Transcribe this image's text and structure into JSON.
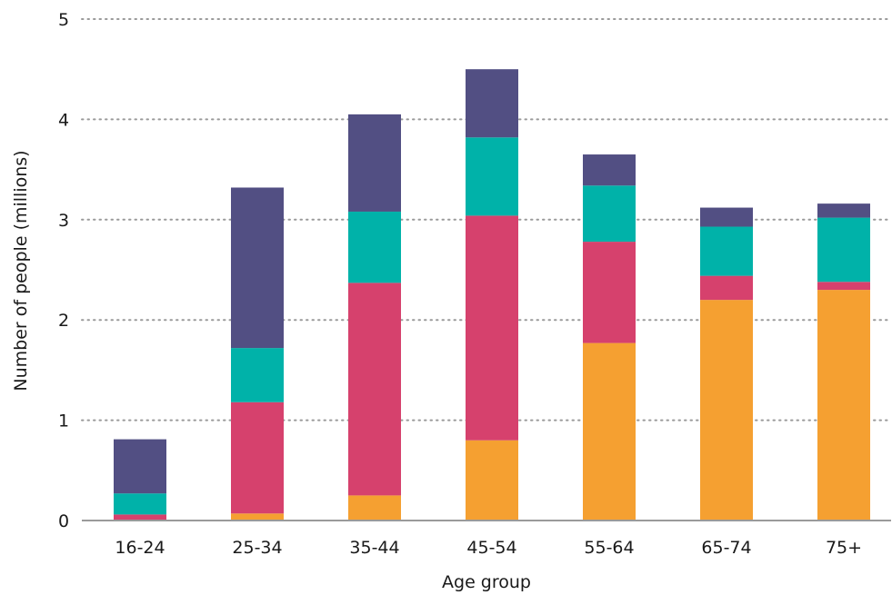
{
  "chart_data": {
    "type": "bar",
    "stacked": true,
    "xlabel": "Age group",
    "ylabel": "Number of people (millions)",
    "ylim": [
      0,
      5
    ],
    "yticks": [
      0,
      1,
      2,
      3,
      4,
      5
    ],
    "grid": true,
    "categories": [
      "16-24",
      "25-34",
      "35-44",
      "45-54",
      "55-64",
      "65-74",
      "75+"
    ],
    "series": [
      {
        "color": "#f5a031",
        "values": [
          0.0,
          0.07,
          0.25,
          0.8,
          1.77,
          2.2,
          2.3
        ]
      },
      {
        "color": "#d6416d",
        "values": [
          0.06,
          1.11,
          2.12,
          2.24,
          1.01,
          0.24,
          0.08
        ]
      },
      {
        "color": "#00b2a9",
        "values": [
          0.21,
          0.54,
          0.71,
          0.78,
          0.56,
          0.49,
          0.64
        ]
      },
      {
        "color": "#524f83",
        "values": [
          0.54,
          1.6,
          0.97,
          0.68,
          0.31,
          0.19,
          0.14
        ]
      }
    ]
  }
}
